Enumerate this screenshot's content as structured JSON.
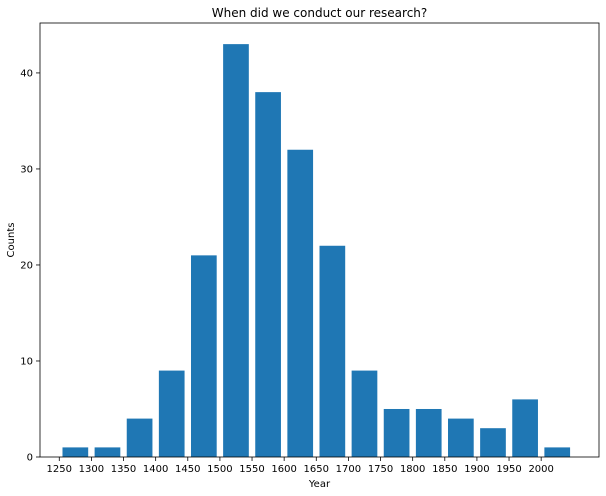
{
  "chart_data": {
    "type": "bar",
    "title": "When did we conduct our research?",
    "xlabel": "Year",
    "ylabel": "Counts",
    "bin_width": 50,
    "bins": [
      {
        "start": 1250,
        "end": 1300,
        "value": 1
      },
      {
        "start": 1300,
        "end": 1350,
        "value": 1
      },
      {
        "start": 1350,
        "end": 1400,
        "value": 4
      },
      {
        "start": 1400,
        "end": 1450,
        "value": 9
      },
      {
        "start": 1450,
        "end": 1500,
        "value": 21
      },
      {
        "start": 1500,
        "end": 1550,
        "value": 43
      },
      {
        "start": 1550,
        "end": 1600,
        "value": 38
      },
      {
        "start": 1600,
        "end": 1650,
        "value": 32
      },
      {
        "start": 1650,
        "end": 1700,
        "value": 22
      },
      {
        "start": 1700,
        "end": 1750,
        "value": 9
      },
      {
        "start": 1750,
        "end": 1800,
        "value": 5
      },
      {
        "start": 1800,
        "end": 1850,
        "value": 5
      },
      {
        "start": 1850,
        "end": 1900,
        "value": 4
      },
      {
        "start": 1900,
        "end": 1950,
        "value": 3
      },
      {
        "start": 1950,
        "end": 2000,
        "value": 6
      },
      {
        "start": 2000,
        "end": 2050,
        "value": 1
      }
    ],
    "x_ticks": [
      1250,
      1300,
      1350,
      1400,
      1450,
      1500,
      1550,
      1600,
      1650,
      1700,
      1750,
      1800,
      1850,
      1900,
      1950,
      2000
    ],
    "y_ticks": [
      0,
      10,
      20,
      30,
      40
    ],
    "xlim": [
      1220,
      2090
    ],
    "ylim": [
      0,
      45.2
    ],
    "bar_color": "#1f77b4",
    "grid": false
  }
}
